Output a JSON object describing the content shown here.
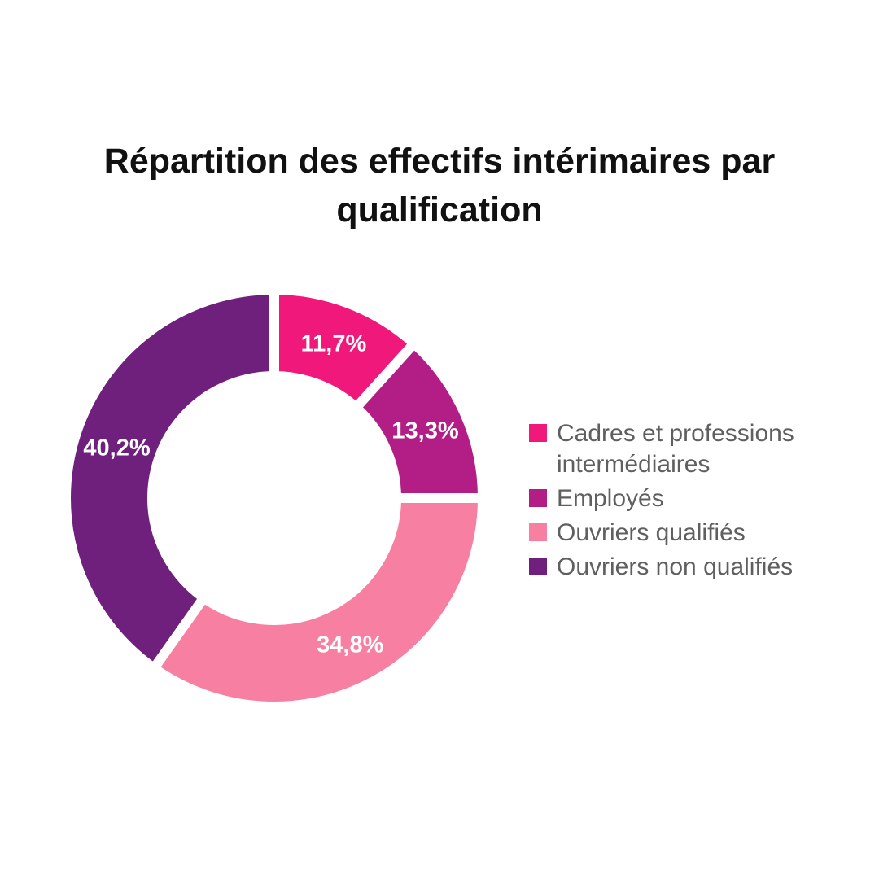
{
  "chart_data": {
    "type": "pie",
    "title": "Répartition des effectifs intérimaires par qualification",
    "categories": [
      "Cadres et professions intermédiaires",
      "Employés",
      "Ouvriers qualifiés",
      "Ouvriers non qualifiés"
    ],
    "values": [
      11.7,
      13.3,
      34.8,
      40.2
    ],
    "value_labels": [
      "11,7%",
      "13,3%",
      "34,8%",
      "40,2%"
    ],
    "colors": [
      "#f0187a",
      "#b31e86",
      "#f77fa2",
      "#6e207c"
    ],
    "legend_position": "right"
  }
}
